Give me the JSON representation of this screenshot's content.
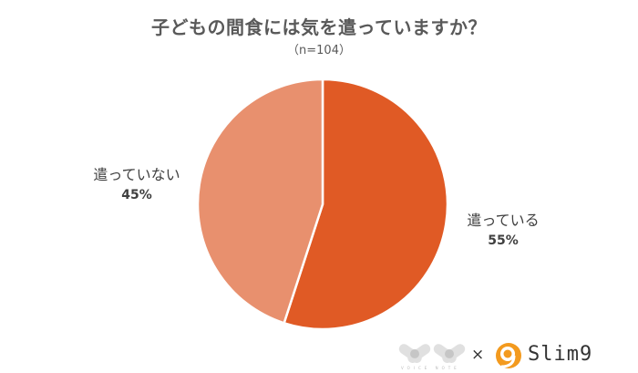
{
  "chart_data": {
    "type": "pie",
    "title": "子どもの間食には気を遣っていますか？",
    "subtitle": "（n=104）",
    "sample_size": 104,
    "categories": [
      "遣っている",
      "遣っていない"
    ],
    "values": [
      55,
      45
    ],
    "labels": [
      "55%",
      "45%"
    ],
    "colors": [
      "#E05A25",
      "#E8906E"
    ],
    "start_angle": "12 o'clock",
    "direction": "clockwise",
    "legend": "none (data labels beside slices)"
  },
  "title": "子どもの間食には気を遣っていますか？",
  "subtitle": "（n=104）",
  "slices": [
    {
      "label": "遣っている",
      "percent": "55%",
      "color": "#E05A25"
    },
    {
      "label": "遣っていない",
      "percent": "45%",
      "color": "#E8906E"
    }
  ],
  "footer": {
    "logo_left": "VOICE NOTE",
    "separator": "×",
    "logo_right": "Slim9"
  }
}
